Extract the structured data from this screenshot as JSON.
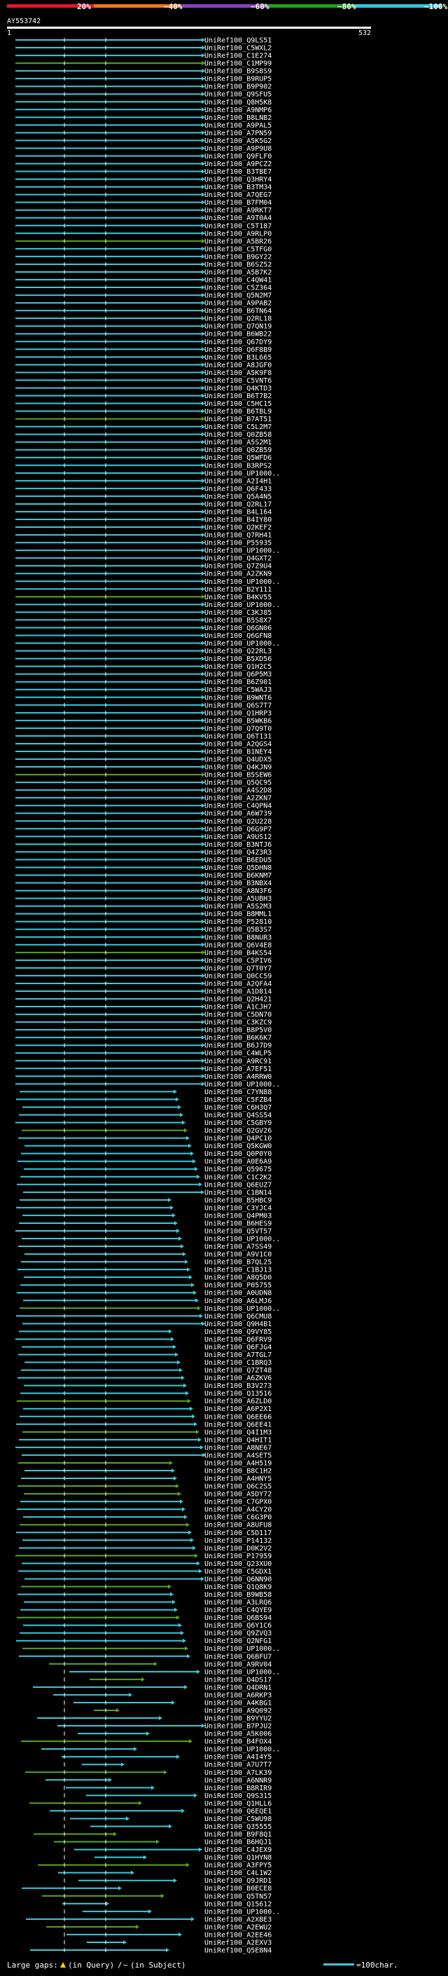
{
  "chart_data": {
    "type": "alignment-overview",
    "query_name": "AY553742",
    "axis_start": "1",
    "axis_end": "532",
    "scale": {
      "ticks": [
        "20%",
        "~40%",
        "~60%",
        "~80%",
        "~100%"
      ],
      "colors": [
        "#e8132b",
        "#f0771a",
        "#8a3fbf",
        "#1ea31e",
        "#2fc4d8"
      ]
    },
    "hit_color": "#3cc9d8",
    "low_color": "#5aa51f",
    "legend": {
      "large_gaps_label": "Large gaps:",
      "query_gap_label": "(in Query)",
      "subject_gap_label": "(in Subject)",
      "char_label": "=100char."
    },
    "hits": [
      "UniRef100_Q9LS51",
      "UniRef100_C5WXL2",
      "UniRef100_C1E274",
      "UniRef100_C1MP99",
      "UniRef100_B9S8S9",
      "UniRef100_B9RUP5",
      "UniRef100_B9P902",
      "UniRef100_Q9SFU5",
      "UniRef100_Q8H5K8",
      "UniRef100_A9NMP6",
      "UniRef100_B8LNB2",
      "UniRef100_A9PAL5",
      "UniRef100_A7PN59",
      "UniRef100_A5K5G2",
      "UniRef100_A9P9U8",
      "UniRef100_Q9FLF0",
      "UniRef100_A9PCZ2",
      "UniRef100_B3TBE7",
      "UniRef100_Q3HRY4",
      "UniRef100_B3TM34",
      "UniRef100_A7QEG7",
      "UniRef100_B7FM04",
      "UniRef100_A9RKT7",
      "UniRef100_A9T0A4",
      "UniRef100_C5T187",
      "UniRef100_A9RLP0",
      "UniRef100_A5BR26",
      "UniRef100_C5TFG0",
      "UniRef100_B9GY22",
      "UniRef100_B6SZ52",
      "UniRef100_A5B7K2",
      "UniRef100_C4QW41",
      "UniRef100_C5Z364",
      "UniRef100_Q5N2M7",
      "UniRef100_A9PAB2",
      "UniRef100_B6TN64",
      "UniRef100_Q2RL18",
      "UniRef100_Q7QN19",
      "UniRef100_B6WB22",
      "UniRef100_Q67DY9",
      "UniRef100_Q6F8B9",
      "UniRef100_B3L665",
      "UniRef100_A8JGF0",
      "UniRef100_A5K9F8",
      "UniRef100_C5VNT6",
      "UniRef100_Q4KTD3",
      "UniRef100_B6T7B2",
      "UniRef100_C5HC15",
      "UniRef100_B6TBL9",
      "UniRef100_B7AT51",
      "UniRef100_C5L2M7",
      "UniRef100_Q0ZB58",
      "UniRef100_A5S2M1",
      "UniRef100_Q0ZB59",
      "UniRef100_Q5WFD6",
      "UniRef100_B3RPS2",
      "UniRef100_UP1000..",
      "UniRef100_A2I4H1",
      "UniRef100_Q6F433",
      "UniRef100_Q5A4N5",
      "UniRef100_Q2RL17",
      "UniRef100_B4L164",
      "UniRef100_B4IY80",
      "UniRef100_Q2KEF2",
      "UniRef100_Q7RH41",
      "UniRef100_P55935",
      "UniRef100_UP1000..",
      "UniRef100_Q4GXT2",
      "UniRef100_Q7Z9U4",
      "UniRef100_A2ZKN9",
      "UniRef100_UP1000..",
      "UniRef100_B2Y111",
      "UniRef100_B4KV55",
      "UniRef100_UP1000..",
      "UniRef100_C3KJ85",
      "UniRef100_B5S8X7",
      "UniRef100_Q6GN06",
      "UniRef100_Q6GFN8",
      "UniRef100_UP1000..",
      "UniRef100_Q22RL3",
      "UniRef100_B5XD56",
      "UniRef100_Q1H2C5",
      "UniRef100_Q6P5M3",
      "UniRef100_B6Z901",
      "UniRef100_C5WAJ3",
      "UniRef100_B9WNT6",
      "UniRef100_Q6S7T7",
      "UniRef100_Q1HRP3",
      "UniRef100_B5WKB6",
      "UniRef100_Q7Q9T0",
      "UniRef100_Q6T131",
      "UniRef100_A2QGS4",
      "UniRef100_B1NEY4",
      "UniRef100_Q4UDX5",
      "UniRef100_Q4KJN9",
      "UniRef100_B5SEW6",
      "UniRef100_Q5QC95",
      "UniRef100_A4S2D8",
      "UniRef100_A2ZKN7",
      "UniRef100_C4QPN4",
      "UniRef100_A6W739",
      "UniRef100_Q2U228",
      "UniRef100_Q6G9P7",
      "UniRef100_A9US12",
      "UniRef100_B3NTJ6",
      "UniRef100_Q4Z3R3",
      "UniRef100_B6EDU5",
      "UniRef100_Q5DHN8",
      "UniRef100_B6KNM7",
      "UniRef100_B3NBX4",
      "UniRef100_A8N3F6",
      "UniRef100_A5UBH3",
      "UniRef100_A5S2M3",
      "UniRef100_B8MML1",
      "UniRef100_P52810",
      "UniRef100_Q5B3S7",
      "UniRef100_B8NUR3",
      "UniRef100_Q6V4E8",
      "UniRef100_B4KS54",
      "UniRef100_C5PIV6",
      "UniRef100_Q7T0Y7",
      "UniRef100_Q0CC59",
      "UniRef100_A2QFA4",
      "UniRef100_A1D814",
      "UniRef100_Q2H421",
      "UniRef100_A1CJH7",
      "UniRef100_C5DN70",
      "UniRef100_C3KZC9",
      "UniRef100_B8P5V0",
      "UniRef100_B6K6K7",
      "UniRef100_B6J7D9",
      "UniRef100_C4WLP5",
      "UniRef100_A9RC91",
      "UniRef100_A7EF51",
      "UniRef100_A4RRW0",
      "UniRef100_UP1000..",
      "UniRef100_C7YN88",
      "UniRef100_C5FZB4",
      "UniRef100_C6H3Q7",
      "UniRef100_Q4SS54",
      "UniRef100_C5GBY9",
      "UniRef100_Q2GV26",
      "UniRef100_Q4PC10",
      "UniRef100_Q5KGW0",
      "UniRef100_Q0P0Y0",
      "UniRef100_A0E6A9",
      "UniRef100_Q59675",
      "UniRef100_C1C2K2",
      "UniRef100_Q6EUZ7",
      "UniRef100_C1BN14",
      "UniRef100_B5HBC9",
      "UniRef100_C3YJC4",
      "UniRef100_Q4PM03",
      "UniRef100_B6HES9",
      "UniRef100_Q5VT57",
      "UniRef100_UP1000..",
      "UniRef100_A7SS49",
      "UniRef100_A9V1C0",
      "UniRef100_B7QL25",
      "UniRef100_C1BJ13",
      "UniRef100_A8Q5D0",
      "UniRef100_P05755",
      "UniRef100_A0UDN8",
      "UniRef100_A6LMJ6",
      "UniRef100_UP1000..",
      "UniRef100_Q6CMU8",
      "UniRef100_Q9H4B1",
      "UniRef100_Q9VY85",
      "UniRef100_Q6FRV9",
      "UniRef100_Q6FJG4",
      "UniRef100_A7TGL7",
      "UniRef100_C1BRQ3",
      "UniRef100_Q7ZT48",
      "UniRef100_A6ZKV6",
      "UniRef100_B3V273",
      "UniRef100_Q13516",
      "UniRef100_A6ZLD0",
      "UniRef100_A6P2X1",
      "UniRef100_Q6EE66",
      "UniRef100_Q6EE41",
      "UniRef100_Q4I1M3",
      "UniRef100_Q4HIT1",
      "UniRef100_A8NE67",
      "UniRef100_A4SET5",
      "UniRef100_A4H519",
      "UniRef100_B8C1H2",
      "UniRef100_A4HNY5",
      "UniRef100_Q6C2S5",
      "UniRef100_A5DY72",
      "UniRef100_C7GPX0",
      "UniRef100_A4CY20",
      "UniRef100_C6G3P0",
      "UniRef100_A8UFU8",
      "UniRef100_C5D117",
      "UniRef100_P14132",
      "UniRef100_D0K2V2",
      "UniRef100_P17959",
      "UniRef100_Q23XU0",
      "UniRef100_C5GDX1",
      "UniRef100_Q6NN90",
      "UniRef100_Q1Q8K9",
      "UniRef100_B9WB58",
      "UniRef100_A3LRQ6",
      "UniRef100_C4QYE9",
      "UniRef100_Q6BS94",
      "UniRef100_Q6Y1C6",
      "UniRef100_Q9ZVQ3",
      "UniRef100_Q2NFG1",
      "UniRef100_UP1000..",
      "UniRef100_Q6BFU7",
      "UniRef100_A9RV04",
      "UniRef100_UP1000..",
      "UniRef100_Q4DS17",
      "UniRef100_Q4DRN1",
      "UniRef100_A6RKP3",
      "UniRef100_A4KBG1",
      "UniRef100_A9Q092",
      "UniRef100_B9YYU2",
      "UniRef100_B7PJU2",
      "UniRef100_A5K006",
      "UniRef100_B4FOX4",
      "UniRef100_UP1000..",
      "UniRef100_A4I4Y5",
      "UniRef100_A7U7T7",
      "UniRef100_A7LK39",
      "UniRef100_A6NNR9",
      "UniRef100_B8RIR9",
      "UniRef100_Q9S315",
      "UniRef100_Q1HLL6",
      "UniRef100_Q6EQE1",
      "UniRef100_C5WU98",
      "UniRef100_Q35555",
      "UniRef100_B9F8Q1",
      "UniRef100_B6HQJ1",
      "UniRef100_C4JEX9",
      "UniRef100_Q1HYN8",
      "UniRef100_A3FPY5",
      "UniRef100_C4L1W2",
      "UniRef100_Q9JRD1",
      "UniRef100_B0ECE8",
      "UniRef100_Q5TN57",
      "UniRef100_Q15612",
      "UniRef100_UP1000..",
      "UniRef100_A2XBE3",
      "UniRef100_A2EWU2",
      "UniRef100_A2EE46",
      "UniRef100_A2EXV3",
      "UniRef100_Q5E8N4"
    ]
  }
}
